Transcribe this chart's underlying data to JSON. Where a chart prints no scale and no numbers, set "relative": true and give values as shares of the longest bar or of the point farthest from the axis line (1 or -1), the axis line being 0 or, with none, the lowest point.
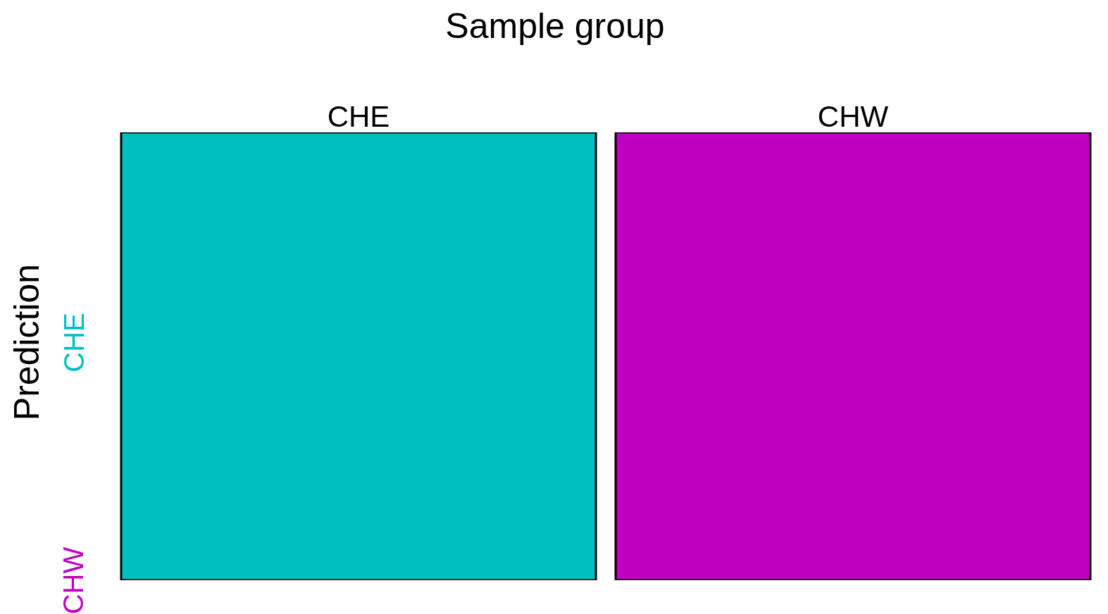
{
  "chart_data": {
    "type": "bar",
    "xlabel": "Sample group",
    "ylabel": "Prediction",
    "categories": [
      "CHE",
      "CHW"
    ],
    "stacked": true,
    "relative": true,
    "grid": false,
    "legend": false,
    "series": [
      {
        "name": "CHW",
        "color": "#c000c0",
        "values": [
          0,
          1
        ]
      },
      {
        "name": "CHE",
        "color": "#00bfbf",
        "values": [
          1,
          0
        ]
      }
    ]
  }
}
